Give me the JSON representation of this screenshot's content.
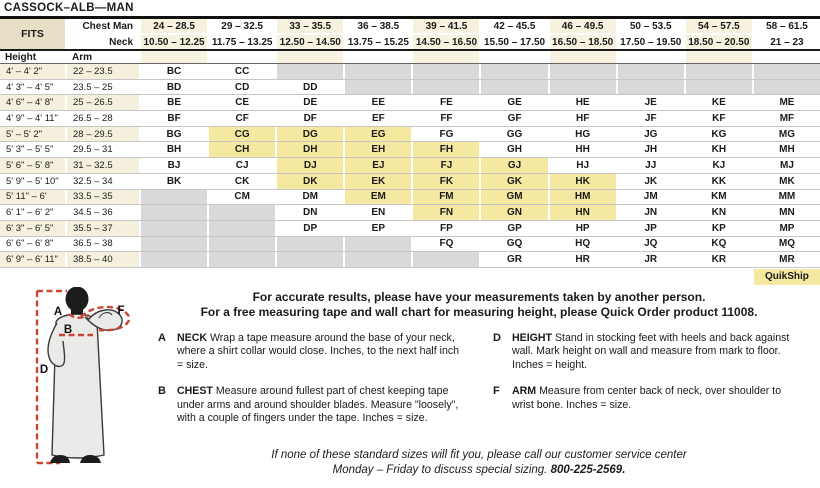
{
  "title": "CASSOCK–ALB—MAN",
  "colors": {
    "fits_beige": "#e6dfc6",
    "column_beige": "#f7f2df",
    "row_beige": "#f5f0dd",
    "quickship_yellow": "#f5e8a1",
    "unavailable_gray": "#d9d9d9",
    "measure_line_red": "#cc4433"
  },
  "table": {
    "fits_label": "FITS",
    "chest_label": "Chest Man",
    "neck_label": "Neck",
    "height_label": "Height",
    "arm_label": "Arm",
    "quikship_label": "QuikShip",
    "chest_ranges": [
      "24 – 28.5",
      "29 – 32.5",
      "33 – 35.5",
      "36 – 38.5",
      "39 – 41.5",
      "42 – 45.5",
      "46 – 49.5",
      "50 – 53.5",
      "54 – 57.5",
      "58 – 61.5"
    ],
    "neck_ranges": [
      "10.50 – 12.25",
      "11.75 – 13.25",
      "12.50 – 14.50",
      "13.75 – 15.25",
      "14.50 – 16.50",
      "15.50 – 17.50",
      "16.50 – 18.50",
      "17.50 – 19.50",
      "18.50 – 20.50",
      "21 – 23"
    ],
    "rows": [
      {
        "height": "4' – 4' 2\"",
        "arm": "22 – 23.5",
        "sizes": [
          "BC",
          "CC",
          "",
          "",
          "",
          "",
          "",
          "",
          "",
          ""
        ],
        "qs": []
      },
      {
        "height": "4' 3\" – 4' 5\"",
        "arm": "23.5 – 25",
        "sizes": [
          "BD",
          "CD",
          "DD",
          "",
          "",
          "",
          "",
          "",
          "",
          ""
        ],
        "qs": []
      },
      {
        "height": "4' 6\" – 4' 8\"",
        "arm": "25 – 26.5",
        "sizes": [
          "BE",
          "CE",
          "DE",
          "EE",
          "FE",
          "GE",
          "HE",
          "JE",
          "KE",
          "ME"
        ],
        "qs": []
      },
      {
        "height": "4' 9\" – 4' 11\"",
        "arm": "26.5 – 28",
        "sizes": [
          "BF",
          "CF",
          "DF",
          "EF",
          "FF",
          "GF",
          "HF",
          "JF",
          "KF",
          "MF"
        ],
        "qs": []
      },
      {
        "height": "5' – 5' 2\"",
        "arm": "28 – 29.5",
        "sizes": [
          "BG",
          "CG",
          "DG",
          "EG",
          "FG",
          "GG",
          "HG",
          "JG",
          "KG",
          "MG"
        ],
        "qs": [
          1,
          2,
          3
        ]
      },
      {
        "height": "5' 3\" – 5' 5\"",
        "arm": "29.5 – 31",
        "sizes": [
          "BH",
          "CH",
          "DH",
          "EH",
          "FH",
          "GH",
          "HH",
          "JH",
          "KH",
          "MH"
        ],
        "qs": [
          1,
          2,
          3,
          4
        ]
      },
      {
        "height": "5' 6\" – 5' 8\"",
        "arm": "31 – 32.5",
        "sizes": [
          "BJ",
          "CJ",
          "DJ",
          "EJ",
          "FJ",
          "GJ",
          "HJ",
          "JJ",
          "KJ",
          "MJ"
        ],
        "qs": [
          2,
          3,
          4,
          5
        ]
      },
      {
        "height": "5' 9\" – 5' 10\"",
        "arm": "32.5 – 34",
        "sizes": [
          "BK",
          "CK",
          "DK",
          "EK",
          "FK",
          "GK",
          "HK",
          "JK",
          "KK",
          "MK"
        ],
        "qs": [
          2,
          3,
          4,
          5,
          6
        ]
      },
      {
        "height": "5' 11\" – 6'",
        "arm": "33.5 – 35",
        "sizes": [
          "",
          "CM",
          "DM",
          "EM",
          "FM",
          "GM",
          "HM",
          "JM",
          "KM",
          "MM"
        ],
        "qs": [
          3,
          4,
          5,
          6
        ]
      },
      {
        "height": "6' 1\" – 6' 2\"",
        "arm": "34.5 – 36",
        "sizes": [
          "",
          "",
          "DN",
          "EN",
          "FN",
          "GN",
          "HN",
          "JN",
          "KN",
          "MN"
        ],
        "qs": [
          4,
          5,
          6
        ]
      },
      {
        "height": "6' 3\" – 6' 5\"",
        "arm": "35.5 – 37",
        "sizes": [
          "",
          "",
          "DP",
          "EP",
          "FP",
          "GP",
          "HP",
          "JP",
          "KP",
          "MP"
        ],
        "qs": []
      },
      {
        "height": "6' 6\" – 6' 8\"",
        "arm": "36.5 – 38",
        "sizes": [
          "",
          "",
          "",
          "",
          "FQ",
          "GQ",
          "HQ",
          "JQ",
          "KQ",
          "MQ"
        ],
        "qs": []
      },
      {
        "height": "6' 9\" – 6' 11\"",
        "arm": "38.5 – 40",
        "sizes": [
          "",
          "",
          "",
          "",
          "",
          "GR",
          "HR",
          "JR",
          "KR",
          "MR"
        ],
        "qs": []
      }
    ]
  },
  "figure": {
    "label_a": "A",
    "label_b": "B",
    "label_d": "D",
    "label_f": "F"
  },
  "intro": {
    "line1": "For accurate results, please have your measurements taken by another person.",
    "line2": "For a free measuring tape and wall chart for measuring height, please Quick Order product 11008."
  },
  "definitions": {
    "a": {
      "letter": "A",
      "term": "NECK",
      "text": " Wrap a tape measure around the base of your neck, where a shirt collar would close. Inches, to the next half inch = size."
    },
    "b": {
      "letter": "B",
      "term": "CHEST",
      "text": " Measure around fullest part of chest keeping tape under arms and around shoulder blades. Measure \"loosely\", with a couple of fingers under the tape. Inches = size."
    },
    "d": {
      "letter": "D",
      "term": "HEIGHT",
      "text": " Stand in stocking feet with heels and back against wall. Mark height on wall and measure from mark to floor. Inches = height."
    },
    "f": {
      "letter": "F",
      "term": "ARM",
      "text": " Measure from center back of neck, over shoulder to wrist bone. Inches = size."
    }
  },
  "footer": {
    "line1": "If none of these standard sizes will fit you, please call our customer service center",
    "line2_prefix": "Monday – Friday to discuss special sizing. ",
    "phone": "800-225-2569."
  }
}
